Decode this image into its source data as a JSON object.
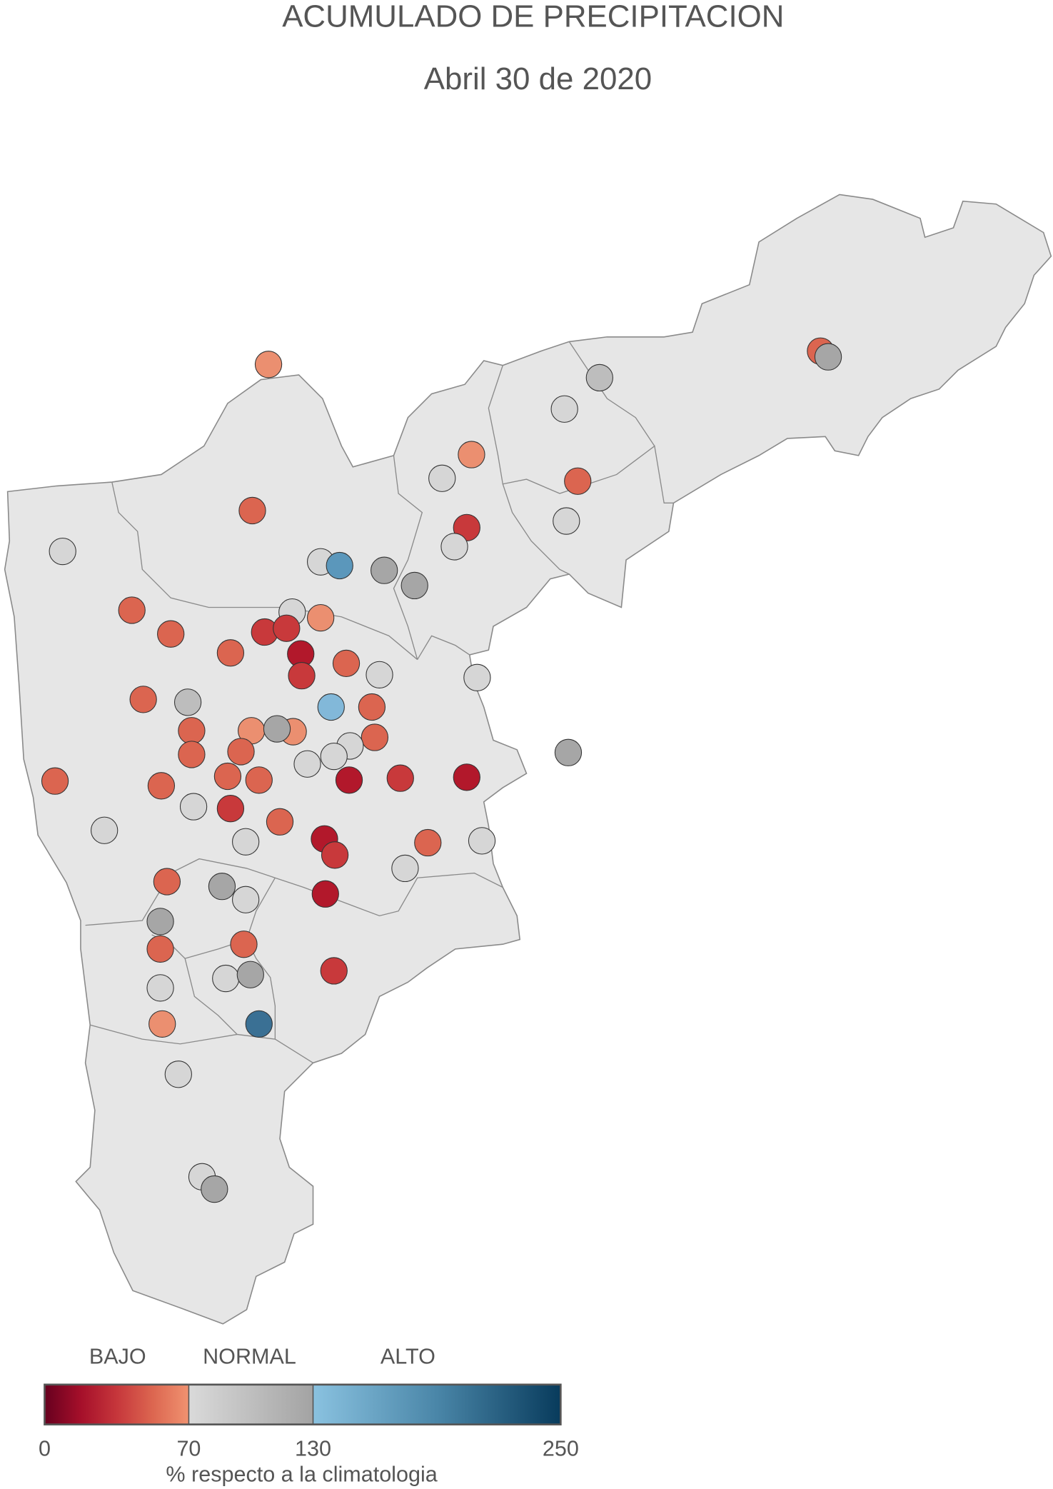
{
  "title": "ACUMULADO DE PRECIPITACION",
  "subtitle": "Abril 30 de 2020",
  "map": {
    "fill_color": "#e6e6e6",
    "border_color": "#8a8a8a"
  },
  "categories": {
    "r0": "#b2182b",
    "r1": "#c8393b",
    "r2": "#db6550",
    "s": "#eb8f70",
    "g1": "#d6d6d6",
    "g2": "#bdbdbd",
    "g3": "#a6a6a6",
    "b1": "#82b8d9",
    "b2": "#5b97bb",
    "b3": "#3a7094"
  },
  "stations": [
    "s",
    "r2",
    "g3",
    "g2",
    "g1",
    "s",
    "g1",
    "r2",
    "r2",
    "r1",
    "g1",
    "g1",
    "g1",
    "g1",
    "b2",
    "g3",
    "g3",
    "g1",
    "s",
    "r2",
    "r2",
    "r1",
    "r1",
    "r2",
    "r0",
    "r1",
    "r2",
    "g1",
    "g1",
    "r2",
    "g2",
    "b1",
    "r2",
    "r2",
    "s",
    "s",
    "g3",
    "r2",
    "g1",
    "g1",
    "g1",
    "g3",
    "r2",
    "r2",
    "r2",
    "r2",
    "r2",
    "r2",
    "r0",
    "r1",
    "r0",
    "g1",
    "r1",
    "r2",
    "g1",
    "g1",
    "r0",
    "r1",
    "r2",
    "g1",
    "g1",
    "r2",
    "g3",
    "g1",
    "r0",
    "g3",
    "r2",
    "r2",
    "r1",
    "g1",
    "g3",
    "g1",
    "s",
    "b3",
    "g1",
    "g1",
    "g3"
  ],
  "legend": {
    "class_labels": [
      "BAJO",
      "NORMAL",
      "ALTO"
    ],
    "ticks": [
      "0",
      "70",
      "130",
      "250"
    ],
    "tick_values": [
      0,
      70,
      130,
      250
    ],
    "axis_label": "% respecto a la climatologia",
    "low_colors": [
      "#67001f",
      "#a50f2a",
      "#c6363b",
      "#dc6650",
      "#f09270"
    ],
    "normal_colors": [
      "#dadada",
      "#a3a3a3"
    ],
    "high_colors": [
      "#8ac2e0",
      "#4a86a8",
      "#083b5c"
    ]
  }
}
